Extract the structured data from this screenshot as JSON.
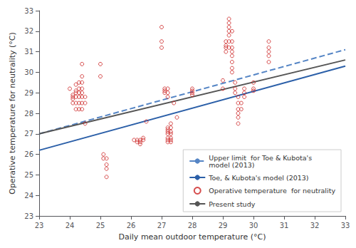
{
  "chart_data": {
    "type": "scatter",
    "xlabel": "Daily mean outdoor temperature (°C)",
    "ylabel": "Operative temperature for neutrality (°C)",
    "xlim": [
      23,
      33
    ],
    "ylim": [
      23,
      33
    ],
    "xticks": [
      23,
      24,
      25,
      26,
      27,
      28,
      29,
      30,
      31,
      32,
      33
    ],
    "yticks": [
      23,
      24,
      25,
      26,
      27,
      28,
      29,
      30,
      31,
      32,
      33
    ],
    "grid": false,
    "legend": "lower right",
    "series": [
      {
        "name": "Upper limit  for Toe & Kubota's\nmodel (2013)",
        "type": "line",
        "color": "#5585C5",
        "line_style": "dashed",
        "x": [
          23,
          33
        ],
        "values": [
          27.0,
          31.1
        ]
      },
      {
        "name": "Toe, & Kubota's model (2013)",
        "type": "line",
        "color": "#2B5FA8",
        "line_style": "solid",
        "x": [
          23,
          33
        ],
        "values": [
          26.2,
          30.3
        ]
      },
      {
        "name": "Operative temperature  for neutrality",
        "type": "scatter",
        "color": "#cc2222",
        "marker": "circle",
        "x": [
          24.0,
          24.1,
          24.1,
          24.1,
          24.1,
          24.2,
          24.2,
          24.2,
          24.2,
          24.2,
          24.2,
          24.3,
          24.3,
          24.3,
          24.3,
          24.3,
          24.3,
          24.4,
          24.4,
          24.4,
          24.4,
          24.4,
          24.4,
          24.4,
          24.4,
          24.5,
          24.5,
          24.5,
          25.0,
          25.0,
          25.1,
          25.1,
          25.2,
          25.2,
          25.2,
          25.2,
          26.1,
          26.2,
          26.2,
          26.3,
          26.3,
          26.3,
          26.4,
          26.4,
          26.5,
          27.0,
          27.0,
          27.0,
          27.1,
          27.1,
          27.1,
          27.2,
          27.2,
          27.2,
          27.2,
          27.2,
          27.2,
          27.2,
          27.2,
          27.2,
          27.2,
          27.3,
          27.3,
          27.3,
          27.3,
          27.3,
          27.3,
          27.3,
          27.4,
          27.5,
          28.0,
          28.0,
          28.0,
          28.0,
          29.0,
          29.0,
          29.1,
          29.1,
          29.1,
          29.1,
          29.2,
          29.2,
          29.2,
          29.2,
          29.2,
          29.2,
          29.2,
          29.3,
          29.3,
          29.3,
          29.3,
          29.3,
          29.3,
          29.3,
          29.3,
          29.4,
          29.4,
          29.4,
          29.5,
          29.5,
          29.5,
          29.5,
          29.5,
          29.5,
          29.6,
          29.6,
          29.7,
          29.7,
          29.7,
          30.0,
          30.0,
          30.0,
          30.5,
          30.5,
          30.5,
          30.5,
          30.5
        ],
        "values": [
          29.2,
          28.9,
          28.8,
          28.7,
          28.5,
          29.4,
          29.1,
          29.0,
          28.8,
          28.5,
          28.2,
          29.5,
          29.2,
          29.0,
          28.8,
          28.5,
          28.2,
          30.4,
          29.8,
          29.5,
          29.2,
          29.0,
          28.8,
          28.5,
          28.2,
          28.8,
          28.5,
          27.5,
          30.4,
          29.8,
          26.0,
          25.8,
          25.8,
          25.5,
          25.3,
          24.9,
          26.7,
          26.7,
          26.6,
          26.7,
          26.6,
          26.5,
          26.8,
          26.7,
          27.6,
          32.2,
          31.5,
          31.2,
          29.2,
          29.1,
          29.0,
          29.2,
          29.0,
          28.8,
          27.3,
          27.2,
          27.1,
          27.0,
          26.8,
          26.7,
          26.6,
          27.5,
          27.3,
          27.1,
          27.0,
          26.8,
          26.7,
          26.6,
          28.5,
          27.8,
          29.2,
          29.1,
          29.0,
          28.9,
          29.6,
          29.2,
          31.5,
          31.3,
          31.2,
          31.0,
          32.6,
          32.4,
          32.2,
          32.0,
          31.8,
          31.5,
          31.2,
          32.0,
          31.5,
          31.2,
          31.0,
          30.8,
          30.5,
          30.2,
          30.0,
          29.5,
          29.2,
          29.0,
          28.8,
          28.5,
          28.2,
          28.0,
          27.8,
          27.5,
          28.5,
          28.2,
          29.2,
          29.0,
          28.8,
          29.5,
          29.2,
          29.1,
          31.5,
          31.2,
          31.0,
          30.8,
          30.5
        ]
      },
      {
        "name": "Present study",
        "type": "line",
        "color": "#555555",
        "line_style": "solid",
        "x": [
          23,
          33
        ],
        "values": [
          27.0,
          30.6
        ]
      }
    ]
  }
}
